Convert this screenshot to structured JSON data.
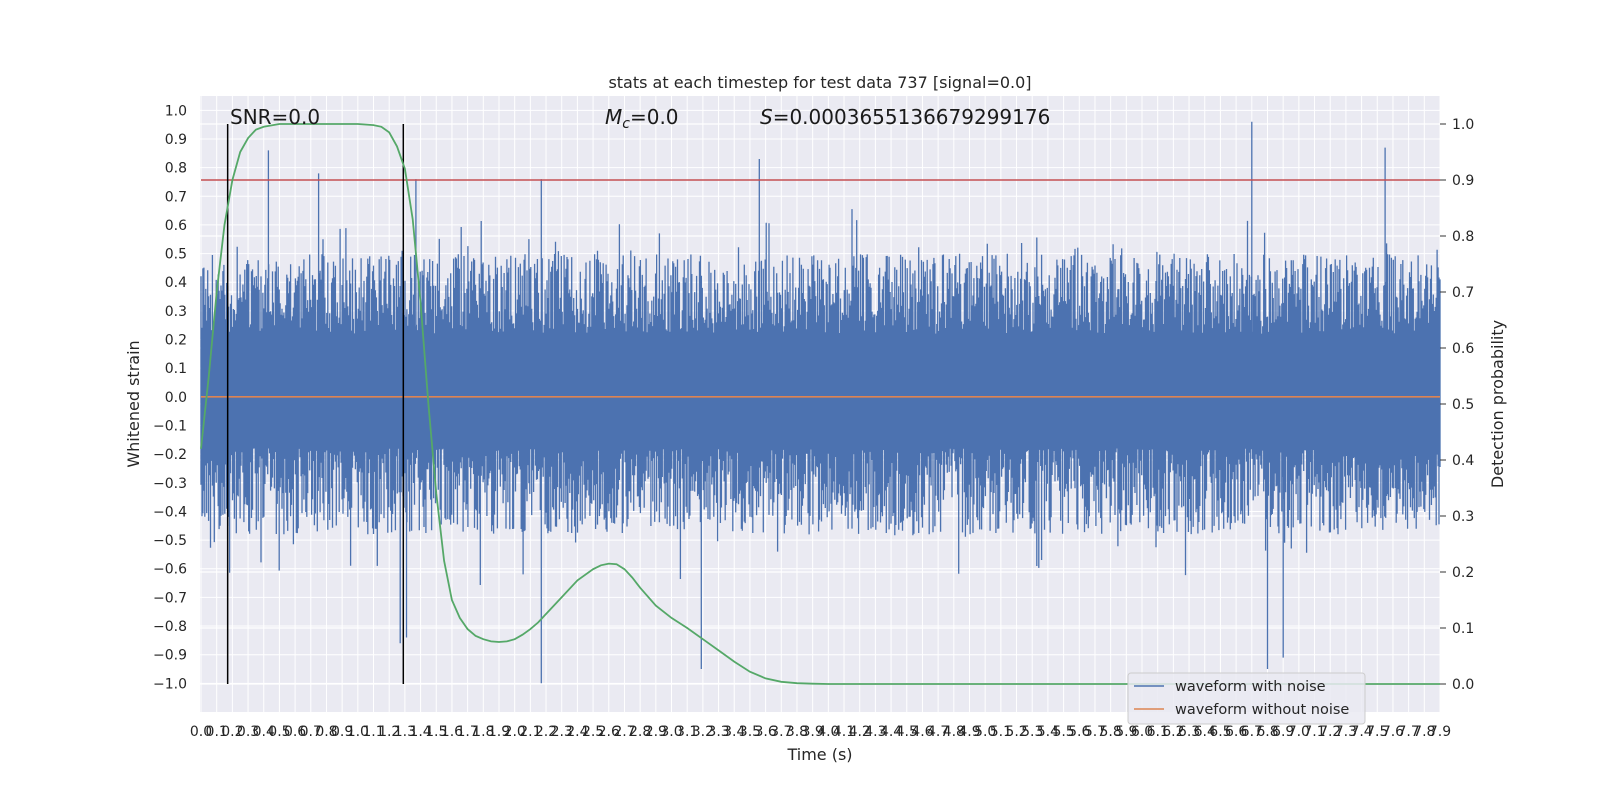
{
  "chart_data": {
    "type": "line",
    "title": "stats at each timestep for test data 737 [signal=0.0]",
    "xlabel": "Time (s)",
    "ylabel": "Whitened strain",
    "y2label": "Detection probability",
    "xlim": [
      0.0,
      7.9
    ],
    "ylim": [
      -1.1,
      1.05
    ],
    "y2lim": [
      -0.05,
      1.05
    ],
    "grid": true,
    "legend_position": "lower right",
    "x_ticks": [
      "0.0",
      "0.1",
      "0.2",
      "0.3",
      "0.4",
      "0.5",
      "0.6",
      "0.7",
      "0.8",
      "0.9",
      "1.0",
      "1.1",
      "1.2",
      "1.3",
      "1.4",
      "1.5",
      "1.6",
      "1.7",
      "1.8",
      "1.9",
      "2.0",
      "2.1",
      "2.2",
      "2.3",
      "2.4",
      "2.5",
      "2.6",
      "2.7",
      "2.8",
      "2.9",
      "3.0",
      "3.1",
      "3.2",
      "3.3",
      "3.4",
      "3.5",
      "3.6",
      "3.7",
      "3.8",
      "3.9",
      "4.0",
      "4.1",
      "4.2",
      "4.3",
      "4.4",
      "4.5",
      "4.6",
      "4.7",
      "4.8",
      "4.9",
      "5.0",
      "5.1",
      "5.2",
      "5.3",
      "5.4",
      "5.5",
      "5.6",
      "5.7",
      "5.8",
      "5.9",
      "6.0",
      "6.1",
      "6.2",
      "6.3",
      "6.4",
      "6.5",
      "6.6",
      "6.7",
      "6.8",
      "6.9",
      "7.0",
      "7.1",
      "7.2",
      "7.3",
      "7.4",
      "7.5",
      "7.6",
      "7.7",
      "7.8",
      "7.9"
    ],
    "y_ticks": [
      "1.0",
      "0.9",
      "0.8",
      "0.7",
      "0.6",
      "0.5",
      "0.4",
      "0.3",
      "0.2",
      "0.1",
      "0.0",
      "−0.1",
      "−0.2",
      "−0.3",
      "−0.4",
      "−0.5",
      "−0.6",
      "−0.7",
      "−0.8",
      "−0.9",
      "−1.0"
    ],
    "y2_ticks": [
      "1.0",
      "0.9",
      "0.8",
      "0.7",
      "0.6",
      "0.5",
      "0.4",
      "0.3",
      "0.2",
      "0.1",
      "0.0"
    ],
    "annotations": {
      "snr": "SNR=0.0",
      "mc": "M_c=0.0",
      "s": "S=0.0003655136679299176"
    },
    "threshold": {
      "value": 0.9,
      "axis": "right"
    },
    "vertical_lines_x": [
      0.17,
      1.29
    ],
    "series": [
      {
        "name": "waveform with noise",
        "axis": "left",
        "color": "#4c72b0",
        "peaks": [
          {
            "x": 0.43,
            "y": 0.86
          },
          {
            "x": 0.75,
            "y": 0.78
          },
          {
            "x": 1.27,
            "y": -0.86
          },
          {
            "x": 1.31,
            "y": -0.84
          },
          {
            "x": 1.37,
            "y": 0.76
          },
          {
            "x": 2.17,
            "y": 0.76
          },
          {
            "x": 2.17,
            "y": -1.0
          },
          {
            "x": 3.19,
            "y": -0.95
          },
          {
            "x": 3.56,
            "y": 0.83
          },
          {
            "x": 6.7,
            "y": 0.96
          },
          {
            "x": 6.8,
            "y": -0.95
          },
          {
            "x": 6.9,
            "y": -0.91
          },
          {
            "x": 7.55,
            "y": 0.87
          }
        ]
      },
      {
        "name": "waveform without noise",
        "axis": "left",
        "color": "#dd8452",
        "x": [
          0.0,
          7.9
        ],
        "y": [
          0.0,
          0.0
        ]
      },
      {
        "name": "Detection probability",
        "axis": "right",
        "color": "#55a868",
        "x": [
          0.0,
          0.05,
          0.1,
          0.15,
          0.2,
          0.25,
          0.3,
          0.35,
          0.4,
          0.5,
          0.6,
          0.7,
          0.8,
          0.9,
          1.0,
          1.1,
          1.15,
          1.2,
          1.25,
          1.3,
          1.35,
          1.4,
          1.45,
          1.5,
          1.55,
          1.6,
          1.65,
          1.7,
          1.75,
          1.8,
          1.85,
          1.9,
          1.95,
          2.0,
          2.05,
          2.1,
          2.15,
          2.2,
          2.3,
          2.4,
          2.5,
          2.55,
          2.6,
          2.65,
          2.7,
          2.75,
          2.8,
          2.9,
          3.0,
          3.1,
          3.2,
          3.3,
          3.4,
          3.5,
          3.6,
          3.7,
          3.8,
          3.9,
          4.0,
          4.5,
          5.0,
          6.0,
          7.0,
          7.9
        ],
        "y": [
          0.42,
          0.55,
          0.7,
          0.82,
          0.9,
          0.95,
          0.975,
          0.99,
          0.995,
          1.0,
          1.0,
          1.0,
          1.0,
          1.0,
          1.0,
          0.998,
          0.995,
          0.985,
          0.96,
          0.92,
          0.83,
          0.68,
          0.5,
          0.34,
          0.22,
          0.15,
          0.118,
          0.098,
          0.086,
          0.08,
          0.076,
          0.075,
          0.076,
          0.08,
          0.088,
          0.098,
          0.11,
          0.125,
          0.155,
          0.185,
          0.205,
          0.212,
          0.215,
          0.214,
          0.205,
          0.19,
          0.172,
          0.14,
          0.118,
          0.1,
          0.08,
          0.06,
          0.04,
          0.022,
          0.01,
          0.004,
          0.0015,
          0.0005,
          0.0,
          0.0,
          0.0,
          0.0,
          0.0,
          0.0
        ]
      }
    ],
    "colors": {
      "plot_background": "#eaeaf2",
      "grid": "#ffffff",
      "noise": "#4c72b0",
      "clean": "#dd8452",
      "probability": "#55a868",
      "threshold": "#c44e52",
      "vlines": "#000000"
    }
  }
}
